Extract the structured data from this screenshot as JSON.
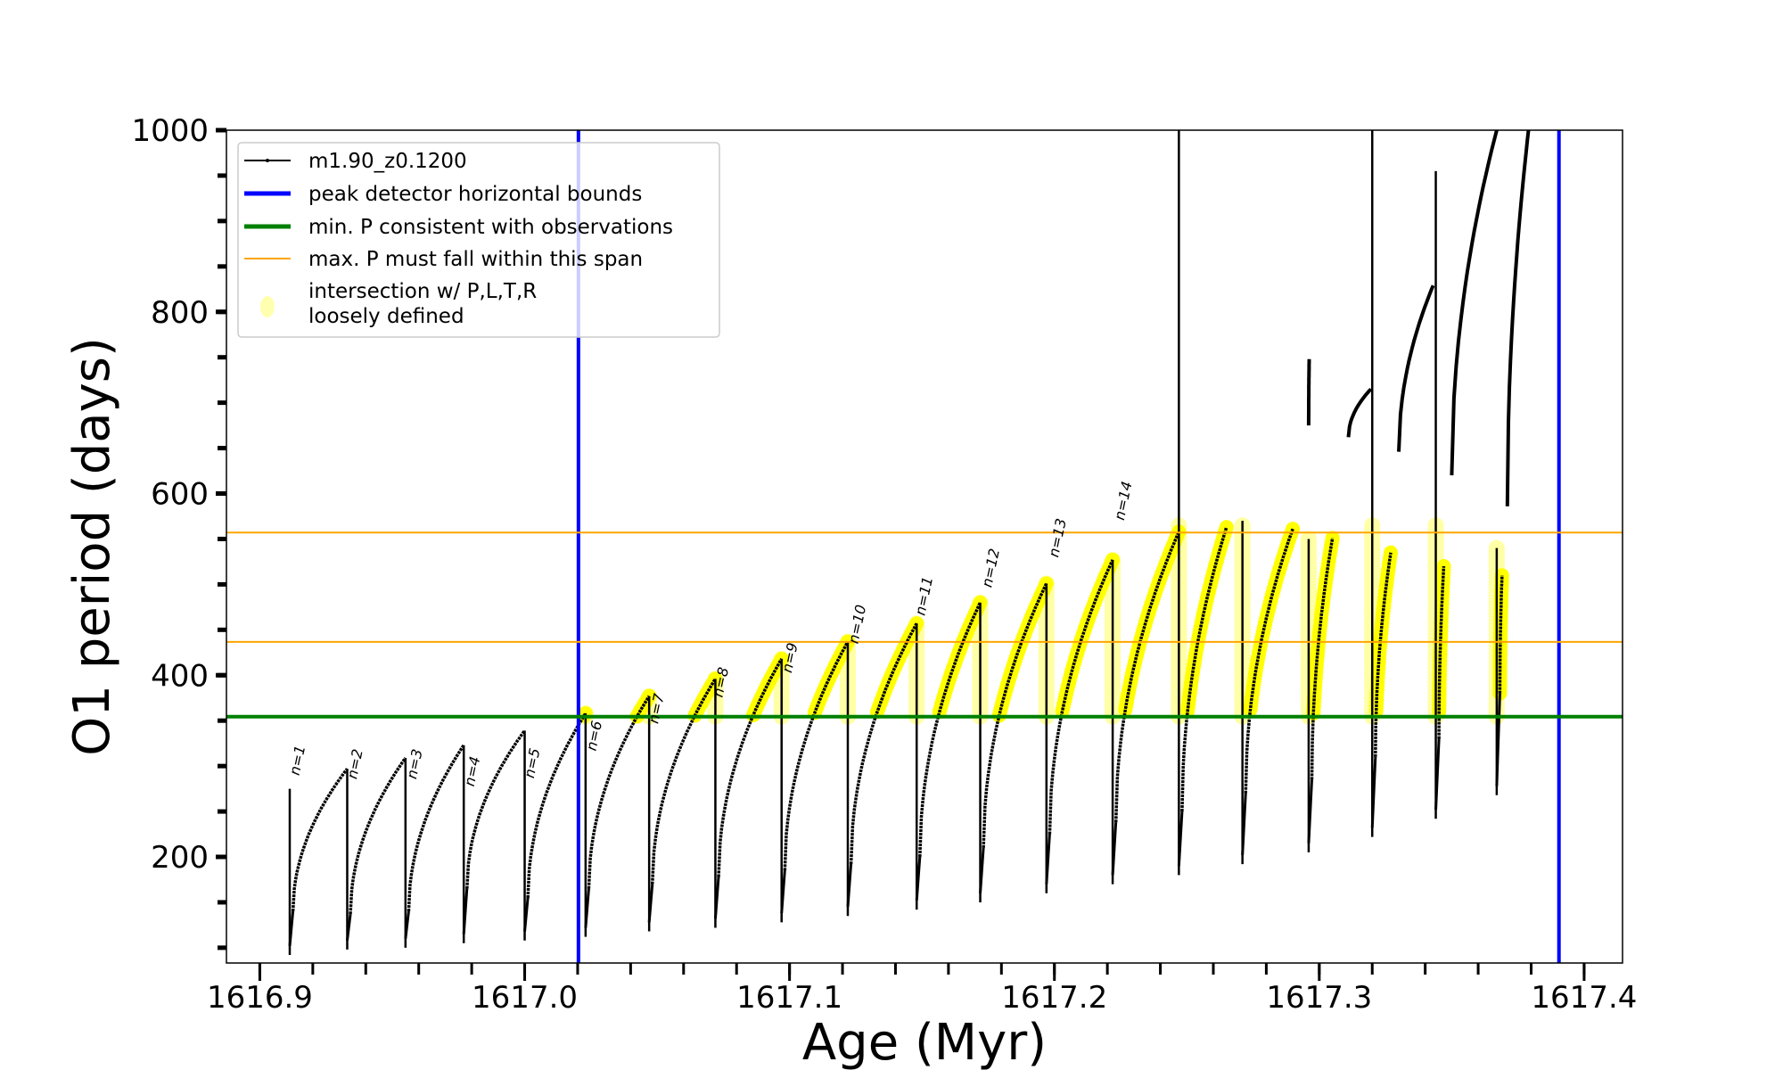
{
  "chart_data": {
    "type": "line",
    "title": "",
    "xlabel": "Age (Myr)",
    "ylabel": "O1 period (days)",
    "xlim": [
      1616.8874,
      1617.4145
    ],
    "ylim": [
      83.2,
      1000
    ],
    "xticks": [
      1616.9,
      1617.0,
      1617.1,
      1617.2,
      1617.3,
      1617.4
    ],
    "xtick_labels": [
      "1616.9",
      "1617.0",
      "1617.1",
      "1617.2",
      "1617.3",
      "1617.4"
    ],
    "xminor_step": 0.02,
    "yticks": [
      200,
      400,
      600,
      800,
      1000
    ],
    "ytick_labels": [
      "200",
      "400",
      "600",
      "800",
      "1000"
    ],
    "yminor_step": 50,
    "grid": false,
    "legend_position": "top-left",
    "legend": [
      {
        "label": "m1.90_z0.1200",
        "color": "#000000",
        "kind": "line-marker"
      },
      {
        "label": "peak detector horizontal bounds",
        "color": "#0000ff",
        "kind": "thick-line"
      },
      {
        "label": "min. P consistent with observations",
        "color": "#008000",
        "kind": "thick-line"
      },
      {
        "label": "max. P must fall within this span",
        "color": "#ffa500",
        "kind": "thin-line"
      },
      {
        "label": "intersection w/ P,L,T,R",
        "label2": "loosely defined",
        "color": "#ffffb0",
        "kind": "dot"
      }
    ],
    "vlines": [
      {
        "x": 1617.0203,
        "color": "#0000ff",
        "name": "peak-detector-left-bound"
      },
      {
        "x": 1617.3905,
        "color": "#0000ff",
        "name": "peak-detector-right-bound"
      }
    ],
    "hlines": [
      {
        "y": 354.4,
        "color": "#008000",
        "name": "min-period-line"
      },
      {
        "y": 436.7,
        "color": "#ffa500",
        "name": "max-period-lower-bound"
      },
      {
        "y": 557,
        "color": "#ffa500",
        "name": "max-period-upper-bound"
      }
    ],
    "series_name": "m1.90_z0.1200",
    "highlight_color": "#ffff00",
    "highlight_threshold": 354.4,
    "highlight_ceiling": 565,
    "cycles": [
      {
        "start": 1616.9113,
        "end": 1616.933,
        "trough": 140,
        "peak": 297,
        "spike_min": 92,
        "spike_max": 275
      },
      {
        "start": 1616.933,
        "end": 1616.955,
        "trough": 137,
        "peak": 309,
        "spike_min": 98
      },
      {
        "start": 1616.955,
        "end": 1616.977,
        "trough": 140,
        "peak": 323,
        "spike_min": 100
      },
      {
        "start": 1616.977,
        "end": 1617.0,
        "trough": 165,
        "peak": 339,
        "spike_min": 105
      },
      {
        "start": 1617.0,
        "end": 1617.023,
        "trough": 155,
        "peak": 358,
        "spike_min": 108
      },
      {
        "start": 1617.023,
        "end": 1617.047,
        "trough": 165,
        "peak": 377,
        "spike_min": 112
      },
      {
        "start": 1617.047,
        "end": 1617.072,
        "trough": 170,
        "peak": 396,
        "spike_min": 118
      },
      {
        "start": 1617.072,
        "end": 1617.097,
        "trough": 178,
        "peak": 418,
        "spike_min": 122
      },
      {
        "start": 1617.097,
        "end": 1617.122,
        "trough": 185,
        "peak": 437,
        "spike_min": 128
      },
      {
        "start": 1617.122,
        "end": 1617.148,
        "trough": 192,
        "peak": 457,
        "spike_min": 135
      },
      {
        "start": 1617.148,
        "end": 1617.172,
        "trough": 200,
        "peak": 480,
        "spike_min": 142
      },
      {
        "start": 1617.172,
        "end": 1617.197,
        "trough": 210,
        "peak": 501,
        "spike_min": 150
      },
      {
        "start": 1617.197,
        "end": 1617.222,
        "trough": 225,
        "peak": 527,
        "spike_min": 160
      },
      {
        "start": 1617.222,
        "end": 1617.247,
        "trough": 238,
        "peak": 558,
        "spike_min": 170
      },
      {
        "start": 1617.247,
        "end": 1617.265,
        "trough": 250,
        "peak": 563,
        "spike_min": 180,
        "spike_max": 1000
      },
      {
        "start": 1617.271,
        "end": 1617.29,
        "trough": 270,
        "peak": 561,
        "spike_min": 192,
        "spike_max": 570
      },
      {
        "start": 1617.296,
        "end": 1617.305,
        "trough": 285,
        "peak": 551,
        "spike_min": 205,
        "spike_max": 550
      },
      {
        "start": 1617.32,
        "end": 1617.327,
        "trough": 310,
        "peak": 535,
        "spike_min": 222,
        "spike_max": 1000
      },
      {
        "start": 1617.344,
        "end": 1617.347,
        "trough": 330,
        "peak": 520,
        "spike_min": 242,
        "spike_max": 955
      },
      {
        "start": 1617.367,
        "end": 1617.369,
        "trough": 380,
        "peak": 510,
        "spike_min": 268,
        "spike_max": 540
      }
    ],
    "upper_branches": [
      {
        "start": 1617.296,
        "end": 1617.2962,
        "from": 675,
        "to": 748
      },
      {
        "start": 1617.311,
        "end": 1617.3195,
        "from": 662,
        "to": 715
      },
      {
        "start": 1617.33,
        "end": 1617.343,
        "from": 646,
        "to": 829
      },
      {
        "start": 1617.35,
        "end": 1617.367,
        "from": 620,
        "to": 1000
      },
      {
        "start": 1617.371,
        "end": 1617.379,
        "from": 586,
        "to": 1000
      }
    ],
    "annotations": [
      {
        "text": "n=1",
        "x": 1616.9148,
        "y": 289
      },
      {
        "text": "n=2",
        "x": 1616.9365,
        "y": 285
      },
      {
        "text": "n=3",
        "x": 1616.959,
        "y": 285
      },
      {
        "text": "n=4",
        "x": 1616.9808,
        "y": 277
      },
      {
        "text": "n=5",
        "x": 1617.0034,
        "y": 286
      },
      {
        "text": "n=6",
        "x": 1617.0268,
        "y": 316
      },
      {
        "text": "n=7",
        "x": 1617.0503,
        "y": 346
      },
      {
        "text": "n=8",
        "x": 1617.0746,
        "y": 375
      },
      {
        "text": "n=9",
        "x": 1617.1007,
        "y": 402
      },
      {
        "text": "n=10",
        "x": 1617.1258,
        "y": 434
      },
      {
        "text": "n=11",
        "x": 1617.151,
        "y": 465
      },
      {
        "text": "n=12",
        "x": 1617.1762,
        "y": 496
      },
      {
        "text": "n=13",
        "x": 1617.2014,
        "y": 529
      },
      {
        "text": "n=14",
        "x": 1617.2262,
        "y": 570
      }
    ]
  }
}
